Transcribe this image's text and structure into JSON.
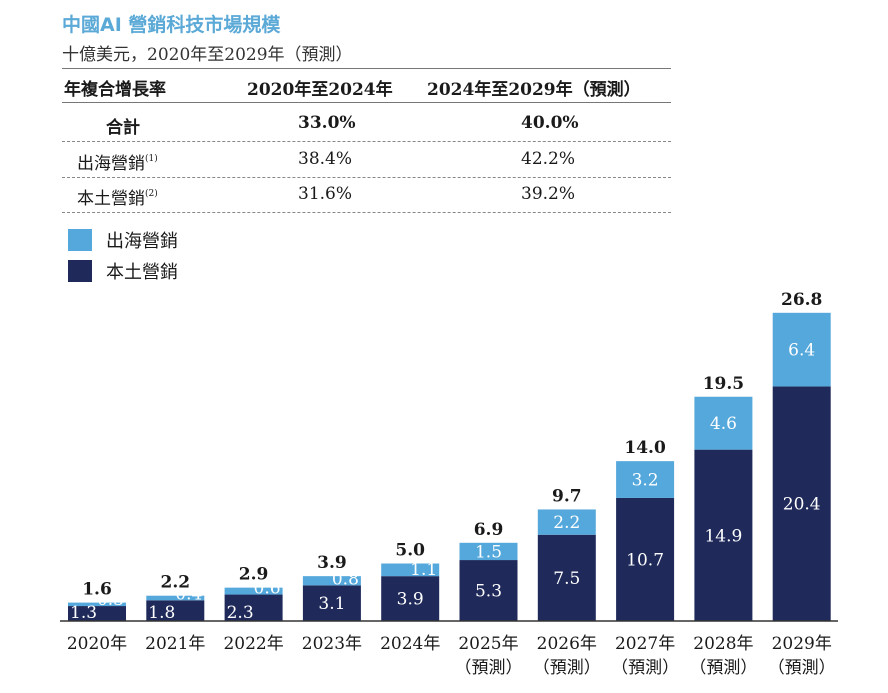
{
  "title": "中國AI 營銷科技市場規模",
  "subtitle": "十億美元，2020年至2029年（預測）",
  "cagr_table": {
    "headers": [
      "年複合增長率",
      "2020年至2024年",
      "2024年至2029年（預測）"
    ],
    "rows": [
      {
        "label": "合計",
        "sup": "",
        "a": "33.0%",
        "b": "40.0%"
      },
      {
        "label": "出海營銷",
        "sup": "(1)",
        "a": "38.4%",
        "b": "42.2%"
      },
      {
        "label": "本土營銷",
        "sup": "(2)",
        "a": "31.6%",
        "b": "39.2%"
      }
    ]
  },
  "chart_data": {
    "type": "bar",
    "stacked": true,
    "categories": [
      "2020年",
      "2021年",
      "2022年",
      "2023年",
      "2024年",
      "2025年（預測）",
      "2026年（預測）",
      "2027年（預測）",
      "2028年（預測）",
      "2029年（預測）"
    ],
    "category_lines": [
      [
        "2020年"
      ],
      [
        "2021年"
      ],
      [
        "2022年"
      ],
      [
        "2023年"
      ],
      [
        "2024年"
      ],
      [
        "2025年",
        "（預測）"
      ],
      [
        "2026年",
        "（預測）"
      ],
      [
        "2027年",
        "（預測）"
      ],
      [
        "2028年",
        "（預測）"
      ],
      [
        "2029年",
        "（預測）"
      ]
    ],
    "series": [
      {
        "name": "本土營銷",
        "color": "#1f2a5a",
        "values": [
          1.3,
          1.8,
          2.3,
          3.1,
          3.9,
          5.3,
          7.5,
          10.7,
          14.9,
          20.4
        ]
      },
      {
        "name": "出海營銷",
        "color": "#55a8dc",
        "values": [
          0.3,
          0.4,
          0.6,
          0.8,
          1.1,
          1.5,
          2.2,
          3.2,
          4.6,
          6.4
        ]
      }
    ],
    "totals": [
      "1.6",
      "2.2",
      "2.9",
      "3.9",
      "5.0",
      "6.9",
      "9.7",
      "14.0",
      "19.5",
      "26.8"
    ],
    "legend": [
      "出海營銷",
      "本土營銷"
    ],
    "legend_colors": [
      "#55a8dc",
      "#1f2a5a"
    ]
  }
}
